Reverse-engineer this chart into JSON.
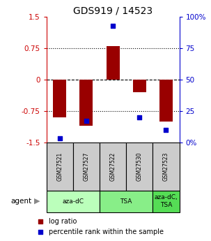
{
  "title": "GDS919 / 14523",
  "samples": [
    "GSM27521",
    "GSM27527",
    "GSM27522",
    "GSM27530",
    "GSM27523"
  ],
  "log_ratios": [
    -0.9,
    -1.1,
    0.8,
    -0.3,
    -1.0
  ],
  "percentile_ranks": [
    3,
    17,
    93,
    20,
    10
  ],
  "groups": [
    {
      "label": "aza-dC",
      "indices": [
        0,
        1
      ],
      "color": "#bbffbb"
    },
    {
      "label": "TSA",
      "indices": [
        2,
        3
      ],
      "color": "#88ee88"
    },
    {
      "label": "aza-dC,\nTSA",
      "indices": [
        4
      ],
      "color": "#55dd55"
    }
  ],
  "bar_color": "#990000",
  "dot_color": "#0000cc",
  "ylim_left": [
    -1.5,
    1.5
  ],
  "ylim_right": [
    0,
    100
  ],
  "yticks_left": [
    -1.5,
    -0.75,
    0,
    0.75,
    1.5
  ],
  "ytick_labels_left": [
    "-1.5",
    "-0.75",
    "0",
    "0.75",
    "1.5"
  ],
  "yticks_right": [
    0,
    25,
    50,
    75,
    100
  ],
  "ytick_labels_right": [
    "0%",
    "25",
    "50",
    "75",
    "100%"
  ],
  "hlines_dotted": [
    -0.75,
    0.75
  ],
  "hline_dashed": 0,
  "legend_items": [
    {
      "color": "#990000",
      "label": "log ratio"
    },
    {
      "color": "#0000cc",
      "label": "percentile rank within the sample"
    }
  ],
  "left_axis_color": "#cc0000",
  "right_axis_color": "#0000cc",
  "sample_box_color": "#cccccc",
  "bar_width": 0.5
}
